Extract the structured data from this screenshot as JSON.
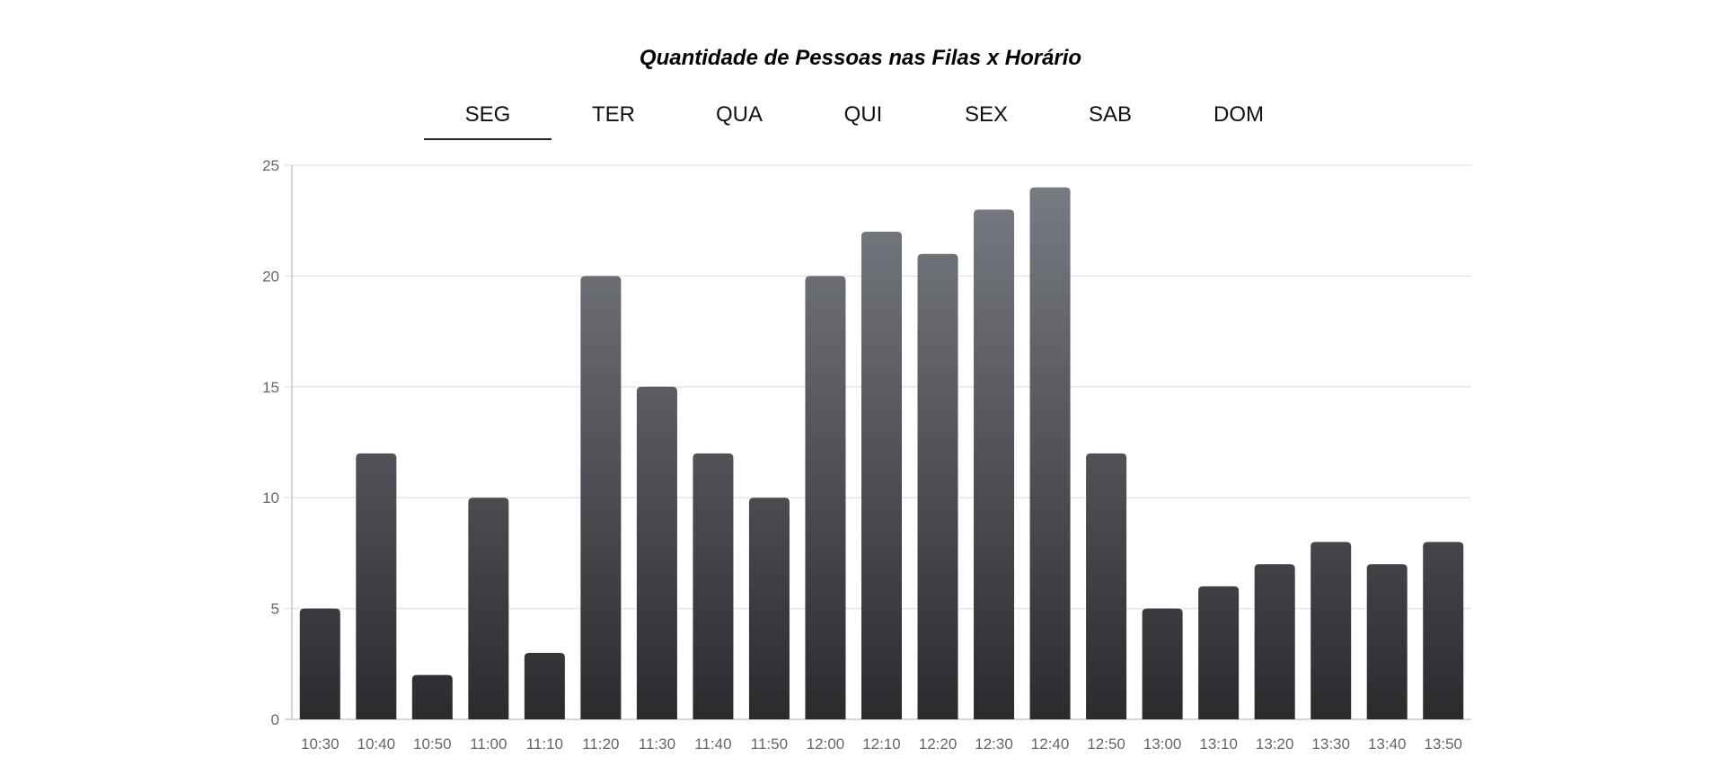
{
  "tabs": [
    "SEG",
    "TER",
    "QUA",
    "QUI",
    "SEX",
    "SAB",
    "DOM"
  ],
  "active_tab": "SEG",
  "colors": {
    "bar_top": "#7b7e85",
    "bar_bottom": "#2b2b2e",
    "grid": "#e6e6e6",
    "axis": "#c8c8c8"
  },
  "chart_data": {
    "type": "bar",
    "title": "Quantidade de Pessoas nas Filas x Horário",
    "xlabel": "",
    "ylabel": "",
    "categories": [
      "10:30",
      "10:40",
      "10:50",
      "11:00",
      "11:10",
      "11:20",
      "11:30",
      "11:40",
      "11:50",
      "12:00",
      "12:10",
      "12:20",
      "12:30",
      "12:40",
      "12:50",
      "13:00",
      "13:10",
      "13:20",
      "13:30",
      "13:40",
      "13:50"
    ],
    "values": [
      5,
      12,
      2,
      10,
      3,
      20,
      15,
      12,
      10,
      20,
      22,
      21,
      23,
      24,
      12,
      5,
      6,
      7,
      8,
      7,
      8
    ],
    "ylim": [
      0,
      25
    ],
    "yticks": [
      0,
      5,
      10,
      15,
      20,
      25
    ],
    "grid": true,
    "legend": "none"
  }
}
